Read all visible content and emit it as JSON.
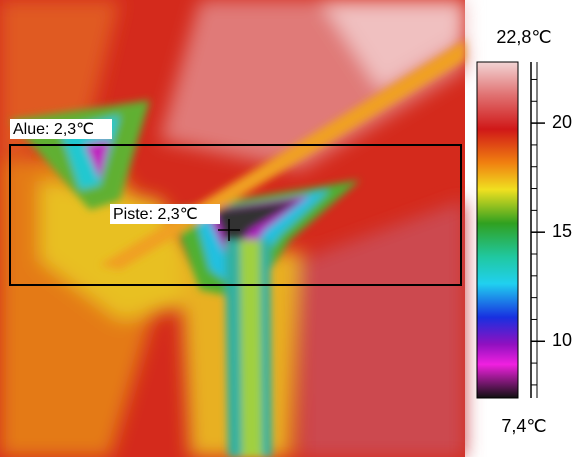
{
  "scale": {
    "max": {
      "value": 22.8,
      "label": "22,8℃"
    },
    "min": {
      "value": 7.4,
      "label": "7,4℃"
    },
    "ticks": [
      20,
      15,
      10
    ]
  },
  "annotations": {
    "area": "Alue: 2,3℃",
    "spot": "Piste: 2,3℃"
  }
}
